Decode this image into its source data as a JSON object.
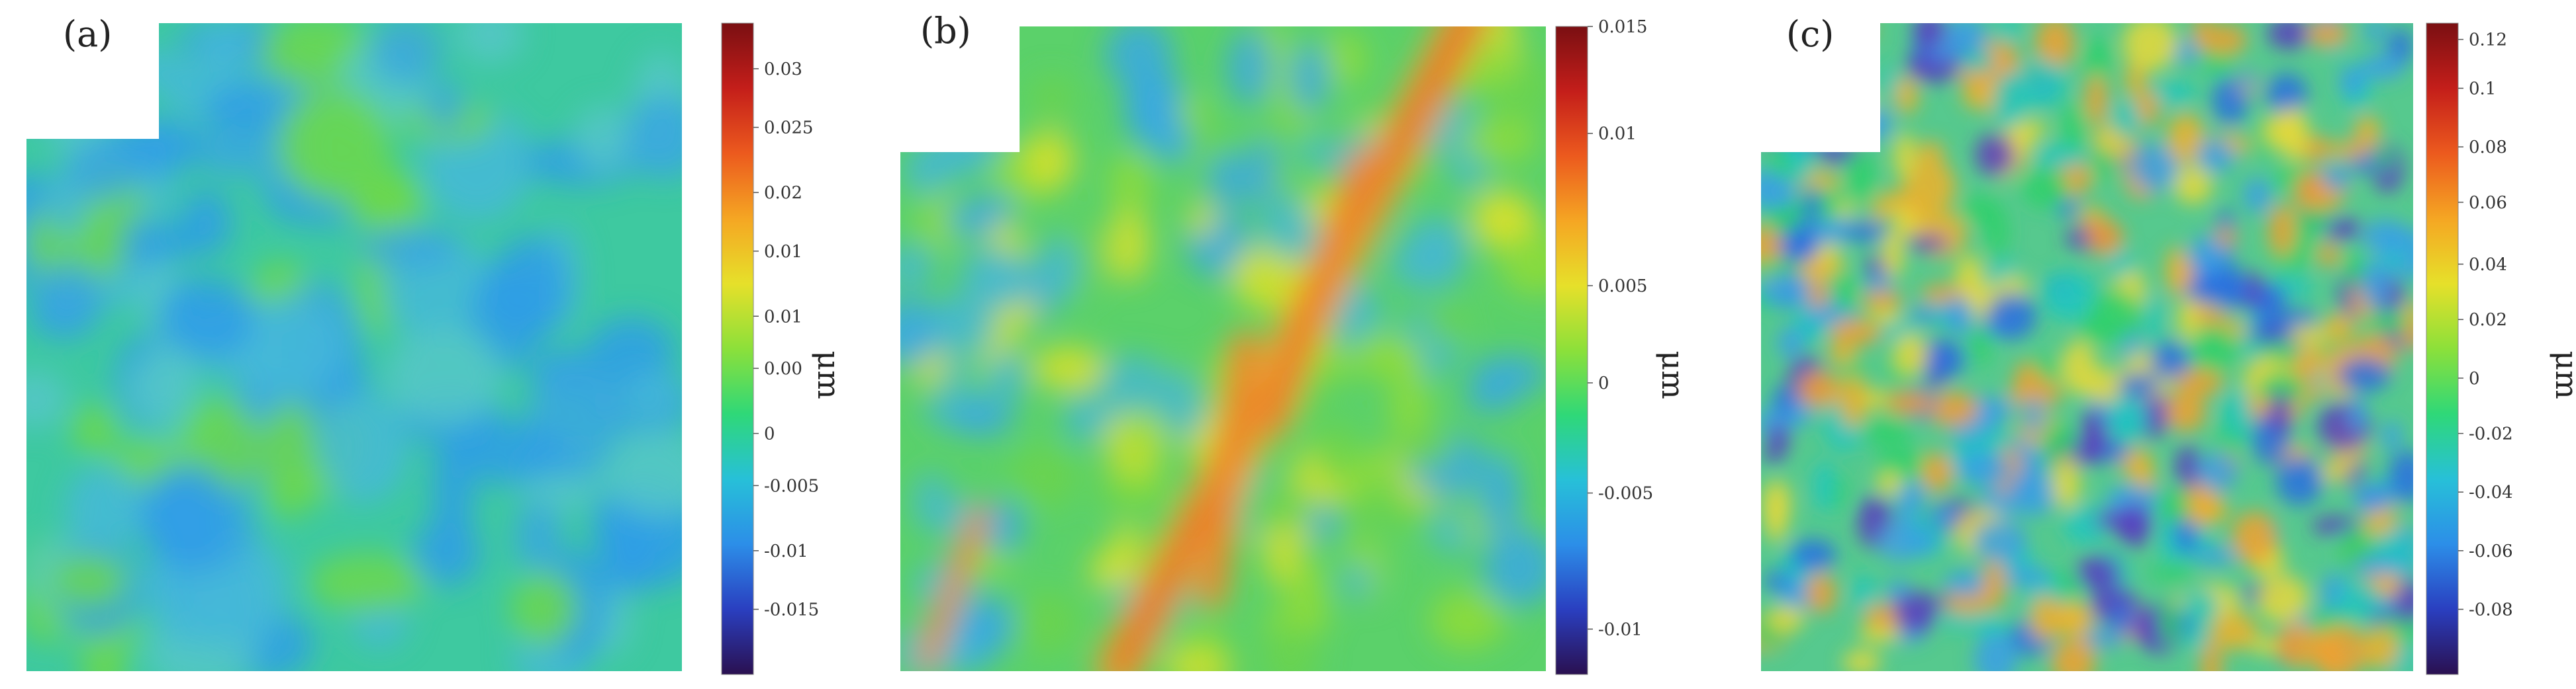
{
  "panels": [
    {
      "label": "(a)",
      "unit": "μm",
      "ticks": [
        "0.03",
        "0.025",
        "0.02",
        "0.01",
        "0.01",
        "0.00",
        "0",
        "-0.005",
        "-0.01",
        "-0.015"
      ]
    },
    {
      "label": "(b)",
      "unit": "μm",
      "ticks": [
        "0.015",
        "0.01",
        "0.005",
        "0",
        "-0.005",
        "-0.01"
      ]
    },
    {
      "label": "(c)",
      "unit": "μm",
      "ticks": [
        "0.12",
        "0.1",
        "0.08",
        "0.06",
        "0.04",
        "0.02",
        "0",
        "-0.02",
        "-0.04",
        "-0.06",
        "-0.08"
      ]
    }
  ],
  "colors": {
    "scale": [
      "#2a1050",
      "#2a3fc0",
      "#2c8ee8",
      "#27c0d8",
      "#2fd878",
      "#8ce03a",
      "#e6e02a",
      "#f5a623",
      "#ec5a1e",
      "#c41e1a",
      "#7a0f12"
    ]
  }
}
